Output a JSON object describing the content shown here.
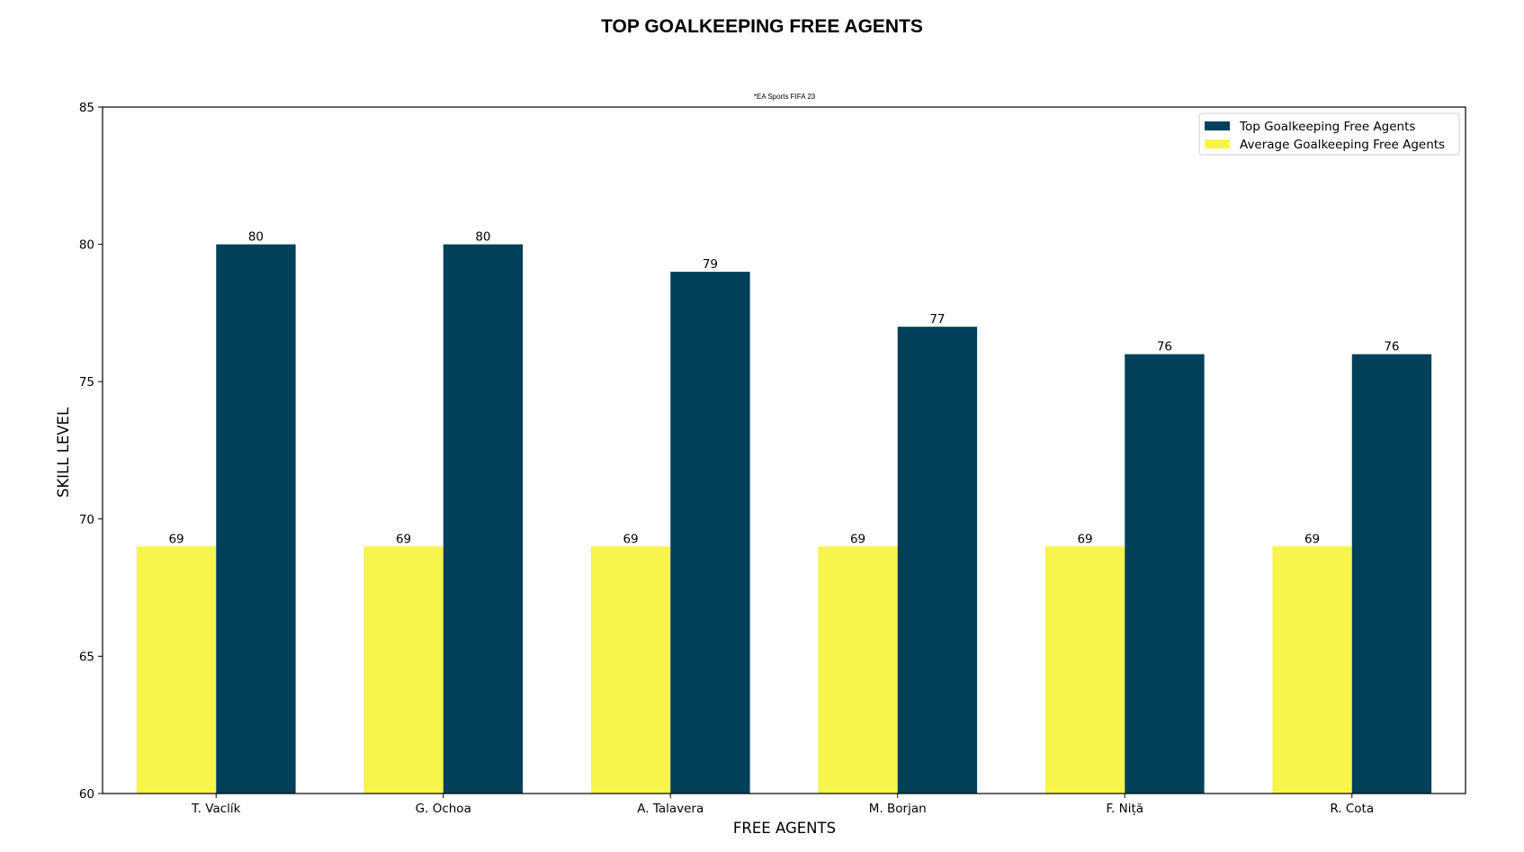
{
  "chart_data": {
    "type": "bar",
    "title": "TOP GOALKEEPING FREE AGENTS",
    "subtitle": "*EA Sports FIFA 23",
    "xlabel": "FREE AGENTS",
    "ylabel": "SKILL LEVEL",
    "ylim": [
      60,
      85
    ],
    "yticks": [
      60,
      65,
      70,
      75,
      80,
      85
    ],
    "grid": false,
    "legend_position": "top-right",
    "categories": [
      "T. Vaclík",
      "G. Ochoa",
      "A. Talavera",
      "M. Borjan",
      "F. Niță",
      "R. Cota"
    ],
    "series": [
      {
        "name": "Average Goalkeeping Free Agents",
        "color": "#f7f44b",
        "values": [
          69,
          69,
          69,
          69,
          69,
          69
        ]
      },
      {
        "name": "Top Goalkeeping Free Agents",
        "color": "#03405a",
        "values": [
          80,
          80,
          79,
          77,
          76,
          76
        ]
      }
    ],
    "legend_order": [
      1,
      0
    ]
  }
}
